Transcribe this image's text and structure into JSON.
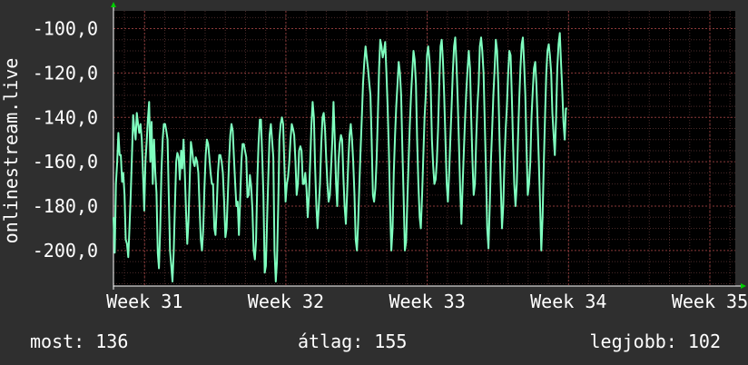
{
  "chart_data": {
    "type": "line",
    "ylabel": "onlinestream.live",
    "ylim": [
      -216,
      -92
    ],
    "yticks": [
      -100,
      -120,
      -140,
      -160,
      -180,
      -200
    ],
    "ytick_labels": [
      "-100,0",
      "-120,0",
      "-140,0",
      "-160,0",
      "-180,0",
      "-200,0"
    ],
    "x_range_weeks": [
      30.78,
      35.18
    ],
    "xticks": [
      31,
      32,
      33,
      34,
      35
    ],
    "xtick_labels": [
      "Week 31",
      "Week 32",
      "Week 33",
      "Week 34",
      "Week 35"
    ],
    "grid": true,
    "series": [
      {
        "color": "#7fffbf",
        "x_start_week": 30.78,
        "x_step_weeks": 0.0087,
        "values": [
          -185,
          -201,
          -170,
          -160,
          -147,
          -157,
          -157,
          -169,
          -165,
          -175,
          -195,
          -197,
          -203,
          -190,
          -175,
          -158,
          -139,
          -145,
          -150,
          -138,
          -143,
          -147,
          -143,
          -150,
          -165,
          -182,
          -160,
          -151,
          -141,
          -133,
          -160,
          -142,
          -170,
          -150,
          -165,
          -174,
          -201,
          -208,
          -190,
          -165,
          -150,
          -143,
          -143,
          -146,
          -150,
          -175,
          -200,
          -207,
          -214,
          -200,
          -180,
          -160,
          -156,
          -158,
          -168,
          -155,
          -163,
          -150,
          -165,
          -182,
          -197,
          -187,
          -168,
          -151,
          -155,
          -160,
          -162,
          -158,
          -160,
          -165,
          -180,
          -195,
          -200,
          -190,
          -172,
          -157,
          -150,
          -152,
          -158,
          -165,
          -170,
          -170,
          -190,
          -193,
          -180,
          -165,
          -157,
          -157,
          -160,
          -165,
          -178,
          -194,
          -190,
          -175,
          -160,
          -148,
          -143,
          -146,
          -158,
          -170,
          -180,
          -178,
          -193,
          -178,
          -160,
          -152,
          -152,
          -155,
          -158,
          -176,
          -175,
          -166,
          -171,
          -182,
          -200,
          -204,
          -195,
          -168,
          -152,
          -141,
          -141,
          -158,
          -175,
          -210,
          -207,
          -185,
          -165,
          -148,
          -143,
          -150,
          -158,
          -200,
          -214,
          -205,
          -180,
          -150,
          -143,
          -140,
          -143,
          -162,
          -178,
          -170,
          -167,
          -160,
          -150,
          -143,
          -145,
          -148,
          -160,
          -175,
          -170,
          -155,
          -153,
          -155,
          -170,
          -170,
          -165,
          -172,
          -185,
          -175,
          -160,
          -143,
          -133,
          -140,
          -162,
          -180,
          -190,
          -180,
          -170,
          -152,
          -140,
          -138,
          -145,
          -158,
          -170,
          -178,
          -175,
          -163,
          -150,
          -133,
          -150,
          -170,
          -180,
          -160,
          -152,
          -148,
          -150,
          -167,
          -180,
          -188,
          -175,
          -160,
          -148,
          -143,
          -150,
          -160,
          -175,
          -195,
          -200,
          -188,
          -170,
          -155,
          -140,
          -125,
          -115,
          -108,
          -113,
          -118,
          -124,
          -130,
          -150,
          -175,
          -178,
          -172,
          -160,
          -140,
          -118,
          -105,
          -108,
          -113,
          -110,
          -106,
          -120,
          -135,
          -155,
          -180,
          -200,
          -190,
          -165,
          -148,
          -135,
          -125,
          -115,
          -120,
          -130,
          -155,
          -175,
          -200,
          -196,
          -178,
          -160,
          -144,
          -130,
          -120,
          -110,
          -114,
          -125,
          -150,
          -170,
          -185,
          -190,
          -175,
          -158,
          -140,
          -130,
          -112,
          -108,
          -114,
          -125,
          -150,
          -162,
          -170,
          -168,
          -160,
          -145,
          -125,
          -108,
          -105,
          -115,
          -130,
          -150,
          -170,
          -178,
          -165,
          -150,
          -135,
          -120,
          -108,
          -104,
          -116,
          -132,
          -152,
          -172,
          -188,
          -170,
          -155,
          -140,
          -128,
          -118,
          -110,
          -118,
          -140,
          -160,
          -175,
          -170,
          -150,
          -135,
          -125,
          -108,
          -104,
          -110,
          -120,
          -142,
          -165,
          -190,
          -199,
          -180,
          -160,
          -145,
          -130,
          -118,
          -105,
          -110,
          -125,
          -150,
          -170,
          -190,
          -180,
          -160,
          -145,
          -135,
          -120,
          -110,
          -112,
          -130,
          -152,
          -170,
          -180,
          -170,
          -150,
          -132,
          -118,
          -107,
          -104,
          -116,
          -130,
          -155,
          -175,
          -170,
          -160,
          -140,
          -128,
          -118,
          -115,
          -125,
          -143,
          -160,
          -180,
          -200,
          -185,
          -160,
          -140,
          -120,
          -110,
          -107,
          -112,
          -120,
          -138,
          -148,
          -157,
          -140,
          -118,
          -107,
          -102,
          -115,
          -128,
          -142,
          -150,
          -136,
          -136
        ]
      }
    ]
  },
  "stats": {
    "current": "most: 136",
    "average": "átlag: 155",
    "best": "legjobb: 102"
  }
}
